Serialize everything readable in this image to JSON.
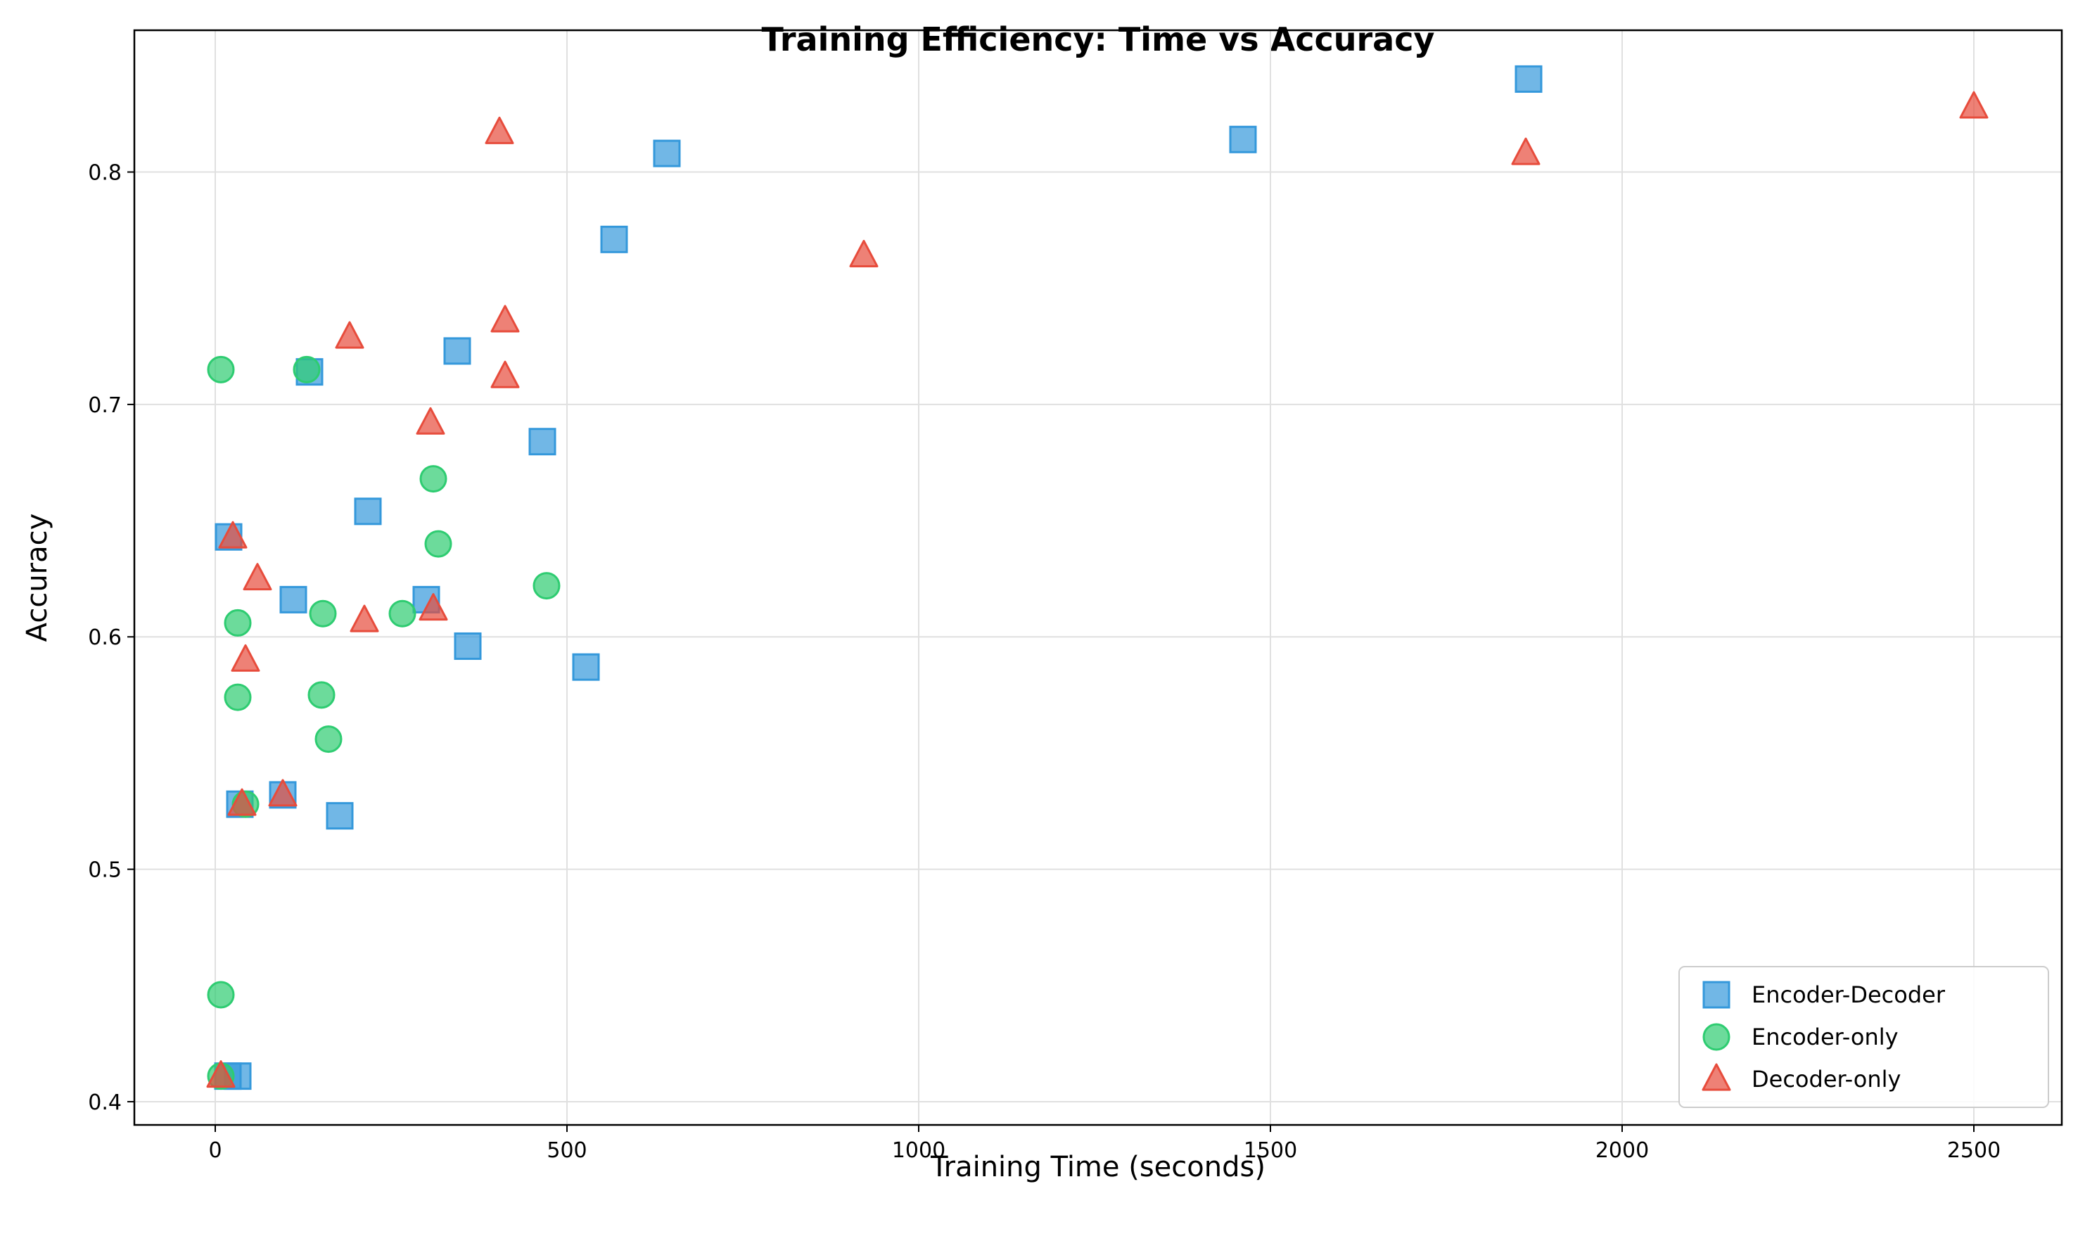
{
  "chart_data": {
    "type": "scatter",
    "title": "Training Efficiency: Time vs Accuracy",
    "xlabel": "Training Time (seconds)",
    "ylabel": "Accuracy",
    "xlim": [
      -115,
      2625
    ],
    "ylim": [
      0.39,
      0.861
    ],
    "xticks": [
      0,
      500,
      1000,
      1500,
      2000,
      2500
    ],
    "xtick_labels": [
      "0",
      "500",
      "1000",
      "1500",
      "2000",
      "2500"
    ],
    "yticks": [
      0.4,
      0.5,
      0.6,
      0.7,
      0.8
    ],
    "ytick_labels": [
      "0.4",
      "0.5",
      "0.6",
      "0.7",
      "0.8"
    ],
    "grid": true,
    "legend_position": "lower-right",
    "series": [
      {
        "name": "Encoder-Decoder",
        "marker": "square",
        "color": "#3498db",
        "points": [
          [
            1867,
            0.84
          ],
          [
            1461,
            0.814
          ],
          [
            642,
            0.808
          ],
          [
            567,
            0.771
          ],
          [
            344,
            0.723
          ],
          [
            134,
            0.714
          ],
          [
            465,
            0.684
          ],
          [
            217,
            0.654
          ],
          [
            19,
            0.643
          ],
          [
            111,
            0.616
          ],
          [
            300,
            0.616
          ],
          [
            359,
            0.596
          ],
          [
            527,
            0.587
          ],
          [
            35,
            0.528
          ],
          [
            96,
            0.532
          ],
          [
            177,
            0.523
          ],
          [
            18,
            0.411
          ],
          [
            32,
            0.411
          ]
        ]
      },
      {
        "name": "Encoder-only",
        "marker": "circle",
        "color": "#2ecc71",
        "points": [
          [
            8,
            0.715
          ],
          [
            130,
            0.715
          ],
          [
            310,
            0.668
          ],
          [
            317,
            0.64
          ],
          [
            471,
            0.622
          ],
          [
            32,
            0.606
          ],
          [
            153,
            0.61
          ],
          [
            266,
            0.61
          ],
          [
            32,
            0.574
          ],
          [
            151,
            0.575
          ],
          [
            161,
            0.556
          ],
          [
            43,
            0.528
          ],
          [
            8,
            0.446
          ],
          [
            8,
            0.411
          ]
        ]
      },
      {
        "name": "Decoder-only",
        "marker": "triangle",
        "color": "#e74c3c",
        "points": [
          [
            2500,
            0.828
          ],
          [
            404,
            0.817
          ],
          [
            1863,
            0.808
          ],
          [
            922,
            0.764
          ],
          [
            191,
            0.729
          ],
          [
            412,
            0.736
          ],
          [
            412,
            0.712
          ],
          [
            306,
            0.692
          ],
          [
            25,
            0.643
          ],
          [
            60,
            0.625
          ],
          [
            212,
            0.607
          ],
          [
            310,
            0.612
          ],
          [
            43,
            0.59
          ],
          [
            38,
            0.528
          ],
          [
            96,
            0.532
          ],
          [
            8,
            0.411
          ]
        ]
      }
    ]
  }
}
